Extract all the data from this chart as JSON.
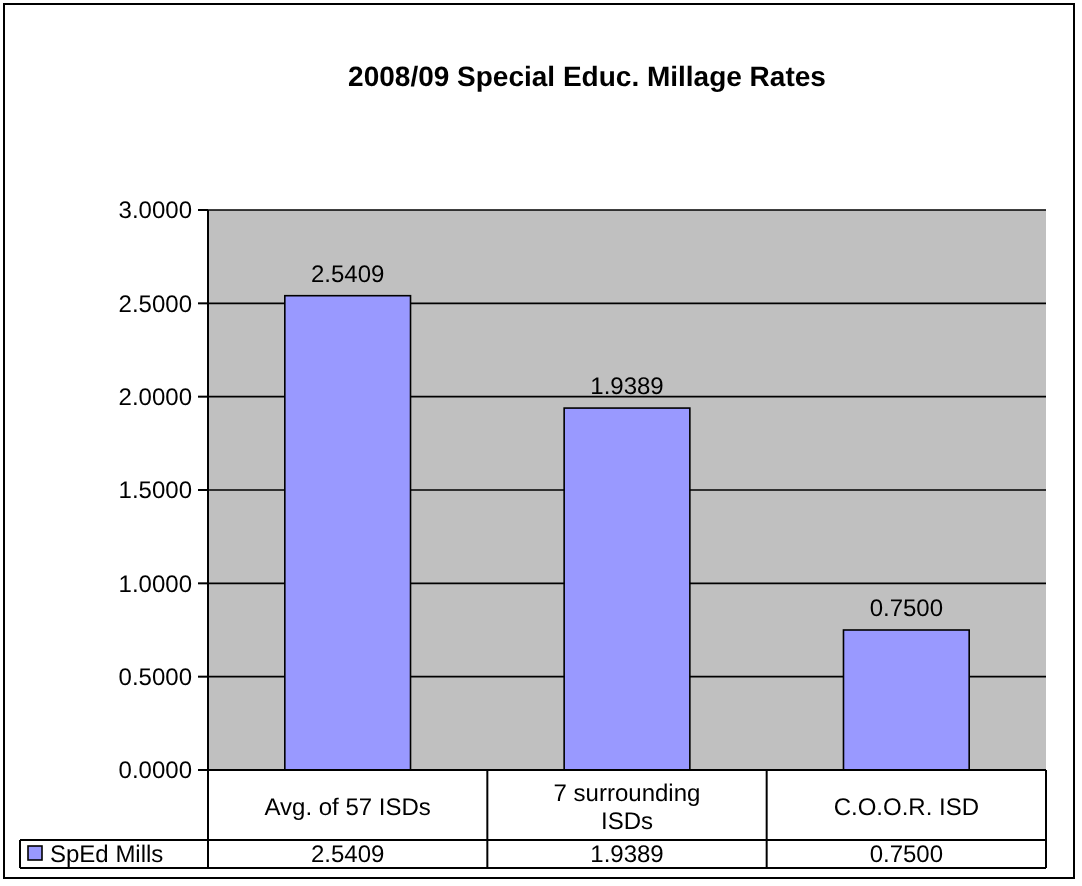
{
  "chart_data": {
    "type": "bar",
    "title": "2008/09 Special Educ. Millage Rates",
    "categories": [
      "Avg. of 57 ISDs",
      "7 surrounding ISDs",
      "C.O.O.R. ISD"
    ],
    "series": [
      {
        "name": "SpEd Mills",
        "color": "#9999ff",
        "values": [
          2.5409,
          1.9389,
          0.75
        ],
        "value_labels": [
          "2.5409",
          "1.9389",
          "0.7500"
        ]
      }
    ],
    "ylim": [
      0,
      3
    ],
    "yticks": [
      {
        "value": 0,
        "label": "0.0000"
      },
      {
        "value": 0.5,
        "label": "0.5000"
      },
      {
        "value": 1,
        "label": "1.0000"
      },
      {
        "value": 1.5,
        "label": "1.5000"
      },
      {
        "value": 2,
        "label": "2.0000"
      },
      {
        "value": 2.5,
        "label": "2.5000"
      },
      {
        "value": 3,
        "label": "3.0000"
      }
    ],
    "grid": "y",
    "legend": "bottom"
  }
}
